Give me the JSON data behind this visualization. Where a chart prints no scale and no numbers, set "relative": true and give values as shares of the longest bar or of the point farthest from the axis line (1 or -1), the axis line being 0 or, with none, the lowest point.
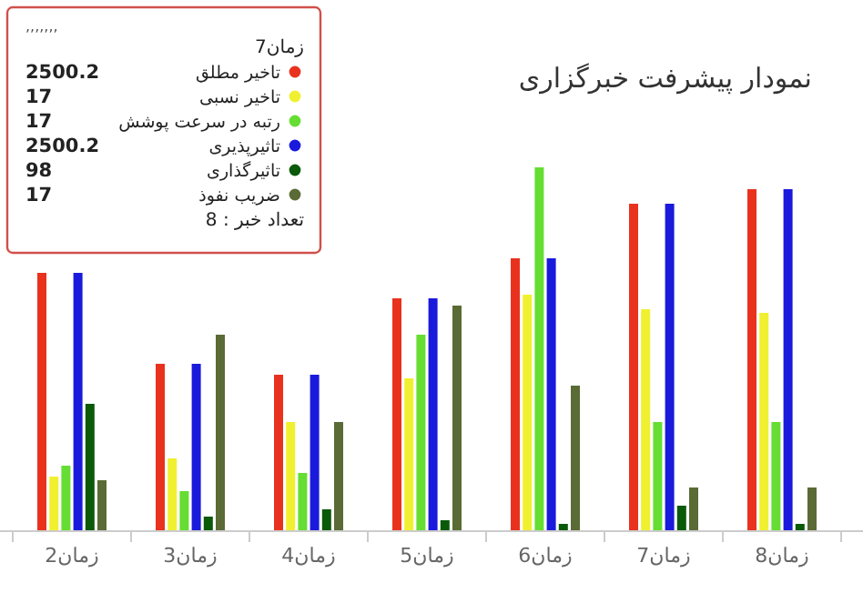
{
  "chart_data": {
    "type": "bar",
    "title": "نمودار پیشرفت خبرگزاری",
    "relative": true,
    "legend": "top left",
    "categories": [
      "زمان2",
      "زمان3",
      "زمان4",
      "زمان5",
      "زمان6",
      "زمان7",
      "زمان8"
    ],
    "series": [
      {
        "name": "تاخیر مطلق",
        "color": "#e8321e",
        "values": [
          0.71,
          0.46,
          0.43,
          0.64,
          0.75,
          0.9,
          0.94
        ]
      },
      {
        "name": "تاخیر نسبی",
        "color": "#f0f030",
        "values": [
          0.15,
          0.2,
          0.3,
          0.42,
          0.65,
          0.61,
          0.6
        ]
      },
      {
        "name": "رتبه در سرعت پوشش",
        "color": "#66dd33",
        "values": [
          0.18,
          0.11,
          0.16,
          0.54,
          1,
          0.3,
          0.3
        ]
      },
      {
        "name": "تاثیرپذیری",
        "color": "#1a1adc",
        "values": [
          0.71,
          0.46,
          0.43,
          0.64,
          0.75,
          0.9,
          0.94
        ]
      },
      {
        "name": "تاثیرگذاری",
        "color": "#0a5a0a",
        "values": [
          0.35,
          0.04,
          0.06,
          0.03,
          0.02,
          0.07,
          0.02
        ]
      },
      {
        "name": "ضریب نفوذ",
        "color": "#5a6b35",
        "values": [
          0.14,
          0.54,
          0.3,
          0.62,
          0.4,
          0.12,
          0.12
        ]
      }
    ],
    "annotations": [
      ",,,,,,,",
      "زمان7",
      "2500.2",
      "17",
      "17",
      "2500.2",
      "98",
      "17",
      "تعداد خبر : 8"
    ]
  }
}
